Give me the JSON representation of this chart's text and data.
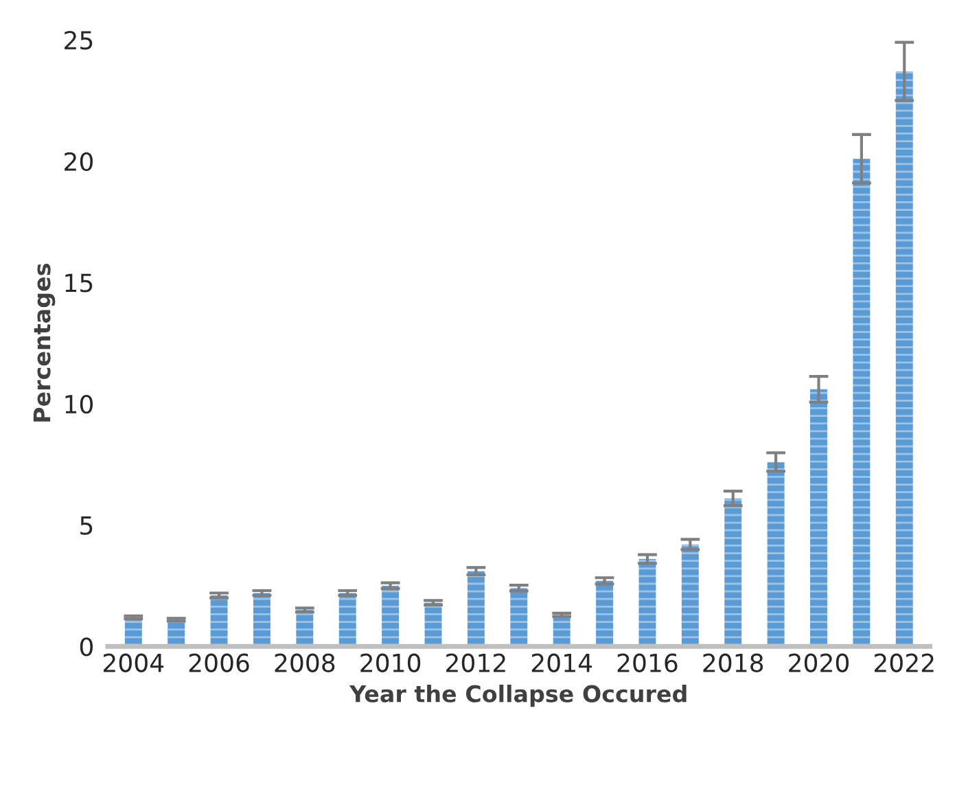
{
  "chart_data": {
    "type": "bar",
    "xlabel": "Year the Collapse Occured",
    "ylabel": "Percentages",
    "categories": [
      "2004",
      null,
      "2006",
      null,
      "2008",
      null,
      "2010",
      null,
      "2012",
      null,
      "2014",
      null,
      "2016",
      null,
      "2018",
      null,
      "2020",
      null,
      "2022"
    ],
    "values": [
      1.2,
      1.1,
      2.1,
      2.2,
      1.5,
      2.2,
      2.5,
      1.8,
      3.1,
      2.4,
      1.3,
      2.7,
      3.6,
      4.2,
      6.1,
      7.6,
      10.6,
      20.1,
      23.7
    ],
    "errors": [
      0.06,
      0.06,
      0.1,
      0.1,
      0.08,
      0.1,
      0.12,
      0.09,
      0.15,
      0.12,
      0.07,
      0.13,
      0.18,
      0.21,
      0.3,
      0.38,
      0.53,
      1.0,
      1.2
    ],
    "color": "#5b9bd5",
    "ylim": [
      0,
      25
    ],
    "yticks": [
      0,
      5,
      10,
      15,
      20,
      25
    ],
    "grid": false
  }
}
